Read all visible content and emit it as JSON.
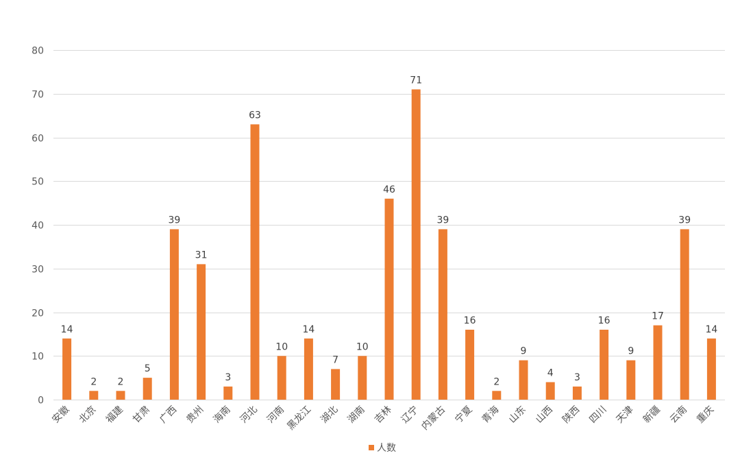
{
  "chart_data": {
    "type": "bar",
    "categories": [
      "安徽",
      "北京",
      "福建",
      "甘肃",
      "广西",
      "贵州",
      "海南",
      "河北",
      "河南",
      "黑龙江",
      "湖北",
      "湖南",
      "吉林",
      "辽宁",
      "内蒙古",
      "宁夏",
      "青海",
      "山东",
      "山西",
      "陕西",
      "四川",
      "天津",
      "新疆",
      "云南",
      "重庆"
    ],
    "series": [
      {
        "name": "人数",
        "values": [
          14,
          2,
          2,
          5,
          39,
          31,
          3,
          63,
          10,
          14,
          7,
          10,
          46,
          71,
          39,
          16,
          2,
          9,
          4,
          3,
          16,
          9,
          17,
          39,
          14
        ]
      }
    ],
    "ylim": [
      0,
      80
    ],
    "yticks": [
      0,
      10,
      20,
      30,
      40,
      50,
      60,
      70,
      80
    ],
    "grid": true,
    "legend": "bottom",
    "data_labels": true,
    "bar_color": "#ED7D31",
    "grid_color": "#D9D9D9"
  }
}
